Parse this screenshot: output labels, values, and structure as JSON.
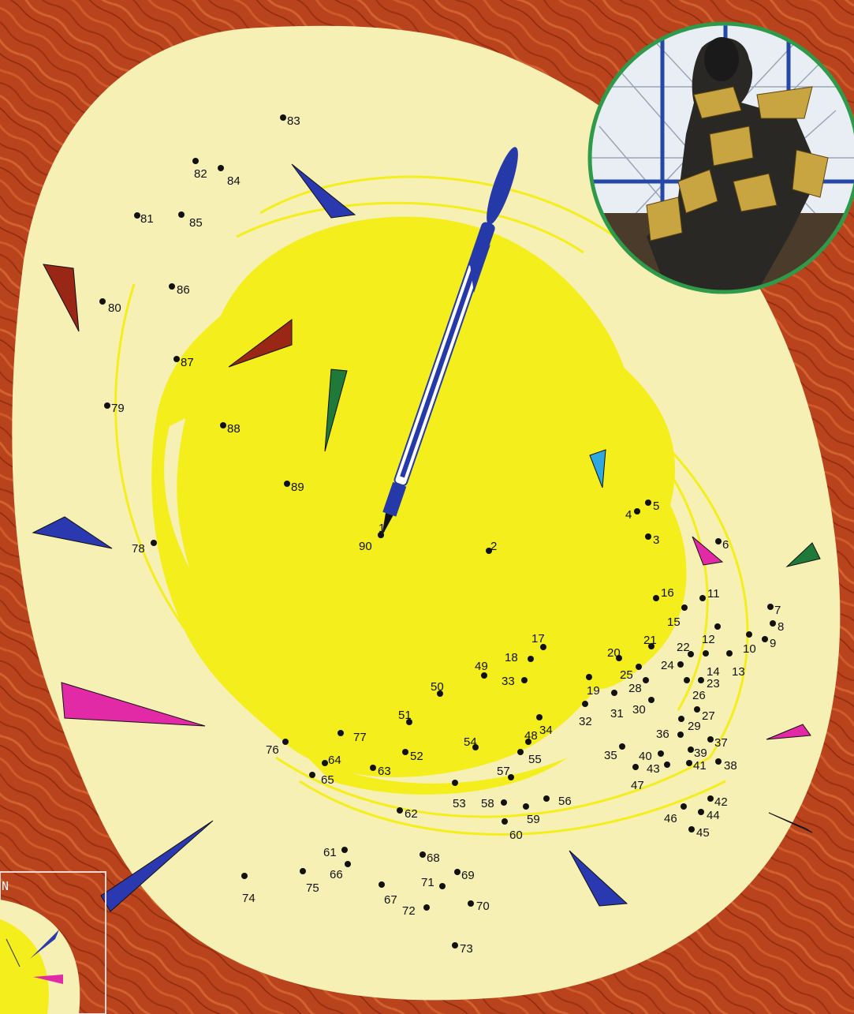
{
  "colors": {
    "background": "#b8431c",
    "background_dark": "#8e2a0e",
    "outer_blob": "#f6f0b4",
    "sun": "#f4ee1c",
    "dot": "#111111",
    "pen_body": "#2639a8",
    "pen_barrel": "#ffffff",
    "photo_border": "#2f9a4a",
    "shard_blue": "#2a39b0",
    "shard_red": "#9a2716",
    "shard_green": "#1f7a3a",
    "shard_pink": "#e22aa6",
    "shard_cyan": "#2fa7e0"
  },
  "puzzle": {
    "dots": [
      {
        "n": "1"
      },
      {
        "n": "2"
      },
      {
        "n": "3"
      },
      {
        "n": "4"
      },
      {
        "n": "5"
      },
      {
        "n": "6"
      },
      {
        "n": "7"
      },
      {
        "n": "8"
      },
      {
        "n": "9"
      },
      {
        "n": "10"
      },
      {
        "n": "11"
      },
      {
        "n": "12"
      },
      {
        "n": "13"
      },
      {
        "n": "14"
      },
      {
        "n": "15"
      },
      {
        "n": "16"
      },
      {
        "n": "17"
      },
      {
        "n": "18"
      },
      {
        "n": "19"
      },
      {
        "n": "20"
      },
      {
        "n": "21"
      },
      {
        "n": "22"
      },
      {
        "n": "23"
      },
      {
        "n": "24"
      },
      {
        "n": "25"
      },
      {
        "n": "26"
      },
      {
        "n": "27"
      },
      {
        "n": "28"
      },
      {
        "n": "29"
      },
      {
        "n": "30"
      },
      {
        "n": "31"
      },
      {
        "n": "32"
      },
      {
        "n": "33"
      },
      {
        "n": "34"
      },
      {
        "n": "35"
      },
      {
        "n": "36"
      },
      {
        "n": "37"
      },
      {
        "n": "38"
      },
      {
        "n": "39"
      },
      {
        "n": "40"
      },
      {
        "n": "41"
      },
      {
        "n": "42"
      },
      {
        "n": "43"
      },
      {
        "n": "44"
      },
      {
        "n": "45"
      },
      {
        "n": "46"
      },
      {
        "n": "47"
      },
      {
        "n": "48"
      },
      {
        "n": "49"
      },
      {
        "n": "50"
      },
      {
        "n": "51"
      },
      {
        "n": "52"
      },
      {
        "n": "53"
      },
      {
        "n": "54"
      },
      {
        "n": "55"
      },
      {
        "n": "56"
      },
      {
        "n": "57"
      },
      {
        "n": "58"
      },
      {
        "n": "59"
      },
      {
        "n": "60"
      },
      {
        "n": "61"
      },
      {
        "n": "62"
      },
      {
        "n": "63"
      },
      {
        "n": "64"
      },
      {
        "n": "65"
      },
      {
        "n": "66"
      },
      {
        "n": "67"
      },
      {
        "n": "68"
      },
      {
        "n": "69"
      },
      {
        "n": "70"
      },
      {
        "n": "71"
      },
      {
        "n": "72"
      },
      {
        "n": "73"
      },
      {
        "n": "74"
      },
      {
        "n": "75"
      },
      {
        "n": "76"
      },
      {
        "n": "77"
      },
      {
        "n": "78"
      },
      {
        "n": "79"
      },
      {
        "n": "80"
      },
      {
        "n": "81"
      },
      {
        "n": "82"
      },
      {
        "n": "83"
      },
      {
        "n": "84"
      },
      {
        "n": "85"
      },
      {
        "n": "86"
      },
      {
        "n": "87"
      },
      {
        "n": "88"
      },
      {
        "n": "89"
      },
      {
        "n": "90"
      }
    ]
  },
  "inset": {
    "label": "N"
  },
  "icons": {
    "pen": "pen-icon",
    "photo": "armored-warrior-photo",
    "shard": "triangle-shard-icon"
  }
}
